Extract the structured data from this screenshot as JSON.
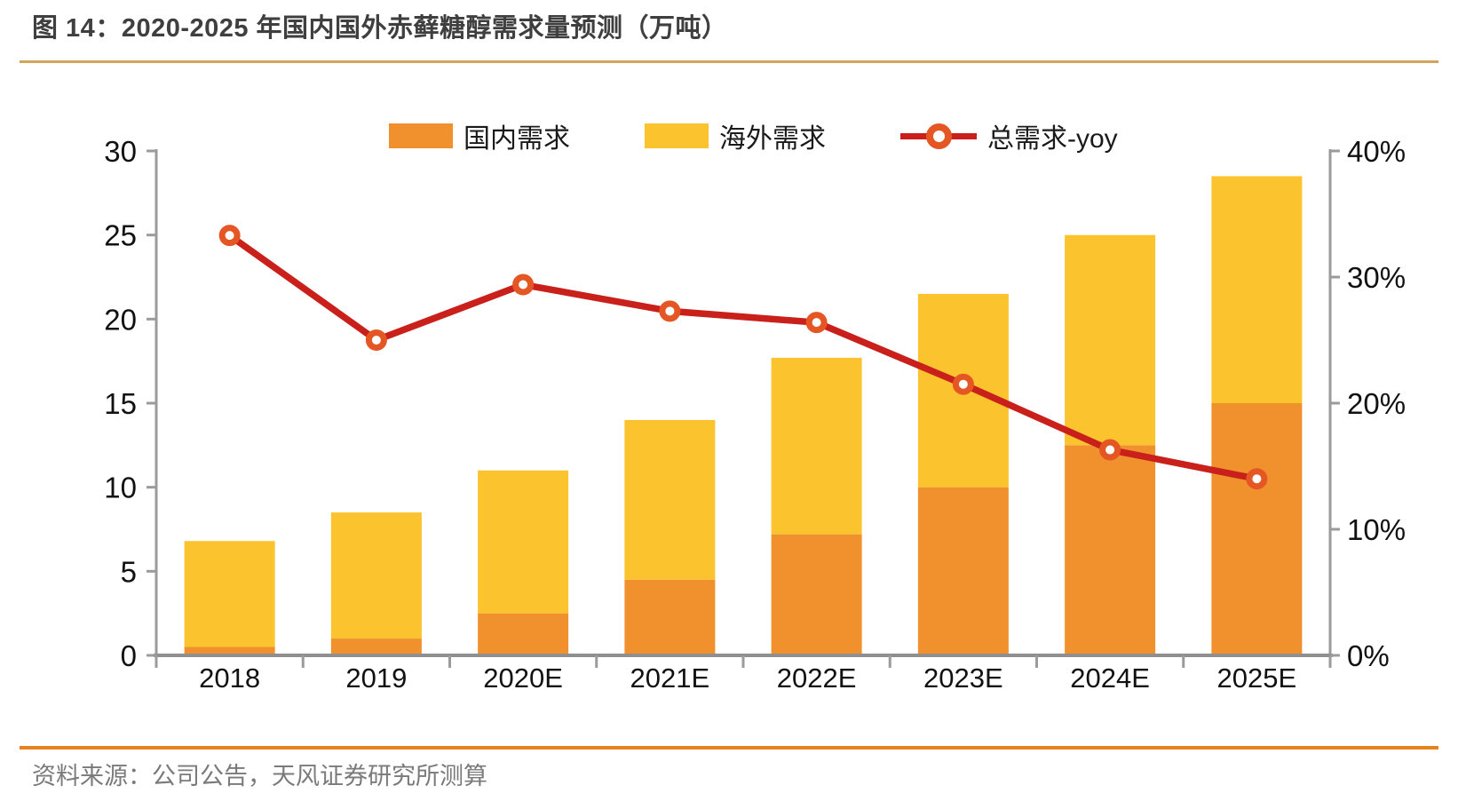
{
  "header": {
    "title": "图 14：2020-2025 年国内国外赤藓糖醇需求量预测（万吨）"
  },
  "footer": {
    "source": "资料来源：公司公告，天风证券研究所测算"
  },
  "chart_data": {
    "type": "bar",
    "subtype": "stacked-bar-with-line",
    "categories": [
      "2018",
      "2019",
      "2020E",
      "2021E",
      "2022E",
      "2023E",
      "2024E",
      "2025E"
    ],
    "series": [
      {
        "name": "国内需求",
        "type": "bar",
        "color": "#f0912d",
        "values": [
          0.5,
          1.0,
          2.5,
          4.5,
          7.2,
          10.0,
          12.5,
          15.0
        ]
      },
      {
        "name": "海外需求",
        "type": "bar",
        "color": "#fbc32e",
        "values": [
          6.3,
          7.5,
          8.5,
          9.5,
          10.5,
          11.5,
          12.5,
          13.5
        ]
      }
    ],
    "stack_totals": [
      6.8,
      8.5,
      11.0,
      14.0,
      17.7,
      21.5,
      25.0,
      28.5
    ],
    "line_series": {
      "name": "总需求-yoy",
      "axis": "right",
      "color": "#c9201b",
      "marker_color": "#e45724",
      "values_pct": [
        33.3,
        25.0,
        29.4,
        27.3,
        26.4,
        21.5,
        16.3,
        14.0
      ]
    },
    "left_axis": {
      "min": 0,
      "max": 30,
      "ticks": [
        0,
        5,
        10,
        15,
        20,
        25,
        30
      ]
    },
    "right_axis": {
      "min": 0,
      "max": 40,
      "ticks": [
        0,
        10,
        20,
        30,
        40
      ],
      "tick_labels": [
        "0%",
        "10%",
        "20%",
        "30%",
        "40%"
      ]
    },
    "grid": false,
    "legend_position": "top-center",
    "title": "图 14：2020-2025 年国内国外赤藓糖醇需求量预测（万吨）",
    "unit": "万吨"
  },
  "colors": {
    "domestic_bar": "#f0912d",
    "overseas_bar": "#fbc32e",
    "yoy_line": "#c9201b",
    "yoy_marker": "#e45724",
    "axis": "#9b9b9b",
    "tick_text": "#111111",
    "title_text": "#3f3f3f",
    "source_text": "#7a7a7a",
    "top_rule": "#d2a45c",
    "bottom_rule": "#e8821e"
  }
}
